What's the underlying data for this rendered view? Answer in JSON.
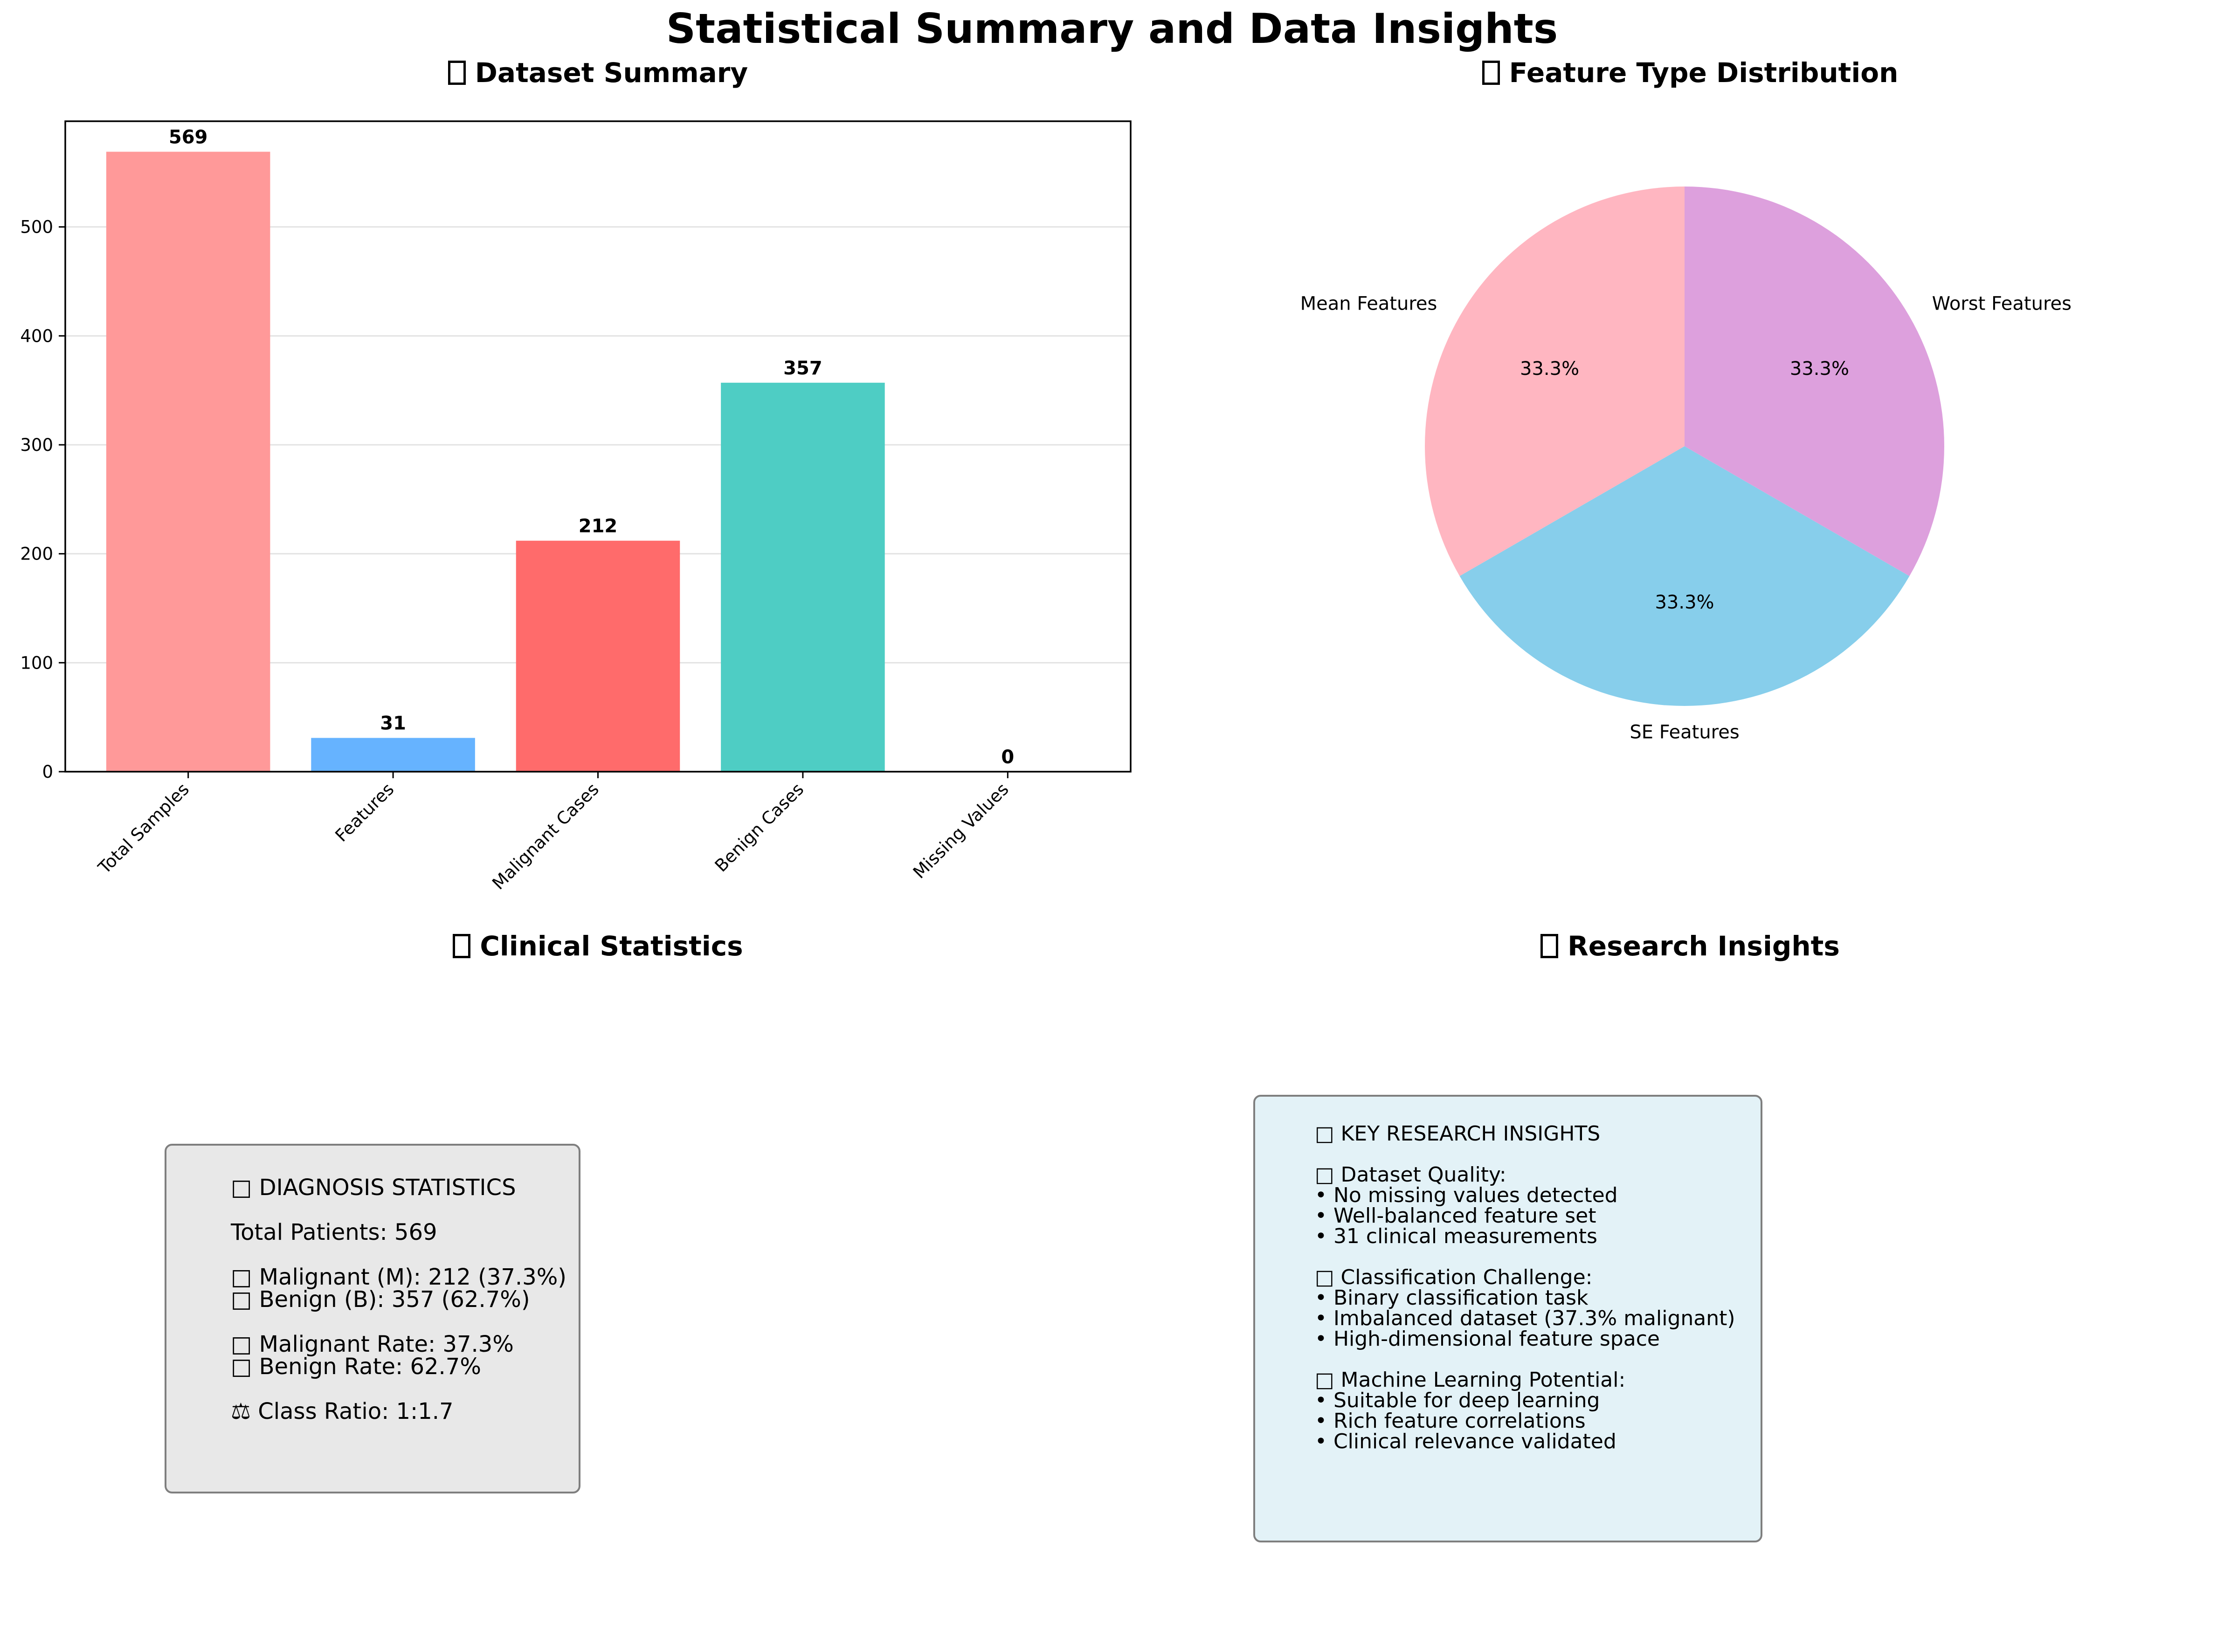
{
  "figure": {
    "title": "Statistical Summary and Data Insights"
  },
  "panels": {
    "dataset_summary": {
      "title": "Dataset Summary",
      "icon": "missing-glyph-icon"
    },
    "feature_distribution": {
      "title": "Feature Type Distribution",
      "icon": "missing-glyph-icon"
    },
    "clinical_statistics": {
      "title": "Clinical Statistics",
      "icon": "missing-glyph-icon"
    },
    "research_insights": {
      "title": "Research Insights",
      "icon": "missing-glyph-icon"
    }
  },
  "chart_data": [
    {
      "type": "bar",
      "title": "Dataset Summary",
      "categories": [
        "Total Samples",
        "Features",
        "Malignant Cases",
        "Benign Cases",
        "Missing Values"
      ],
      "values": [
        569,
        31,
        212,
        357,
        0
      ],
      "value_labels": [
        "569",
        "31",
        "212",
        "357",
        "0"
      ],
      "colors": [
        "#ff9999",
        "#66b3ff",
        "#ff6b6b",
        "#4ecdc4",
        "#95e1d3"
      ],
      "ylim": [
        0,
        597
      ],
      "yticks": [
        0,
        100,
        200,
        300,
        400,
        500
      ],
      "grid": "y"
    },
    {
      "type": "pie",
      "title": "Feature Type Distribution",
      "labels": [
        "Mean Features",
        "SE Features",
        "Worst Features"
      ],
      "values": [
        33.3,
        33.3,
        33.3
      ],
      "pct_labels": [
        "33.3%",
        "33.3%",
        "33.3%"
      ],
      "colors": [
        "#ffb6c1",
        "#87ceeb",
        "#dda0dd"
      ],
      "start_angle": 90
    }
  ],
  "clinical_box": {
    "background": "#e8e8e8",
    "lines": [
      "□ DIAGNOSIS STATISTICS",
      "",
      "Total Patients: 569",
      "",
      "□ Malignant (M): 212 (37.3%)",
      "□ Benign (B): 357 (62.7%)",
      "",
      "□ Malignant Rate: 37.3%",
      "□ Benign Rate: 62.7%",
      "",
      "⚖ Class Ratio: 1:1.7"
    ]
  },
  "insights_box": {
    "background": "#e3f2f7",
    "lines": [
      "□ KEY RESEARCH INSIGHTS",
      "",
      "□ Dataset Quality:",
      "• No missing values detected",
      "• Well-balanced feature set",
      "• 31 clinical measurements",
      "",
      "□ Classification Challenge:",
      "• Binary classification task",
      "• Imbalanced dataset (37.3% malignant)",
      "• High-dimensional feature space",
      "",
      "□ Machine Learning Potential:",
      "• Suitable for deep learning",
      "• Rich feature correlations",
      "• Clinical relevance validated"
    ]
  }
}
